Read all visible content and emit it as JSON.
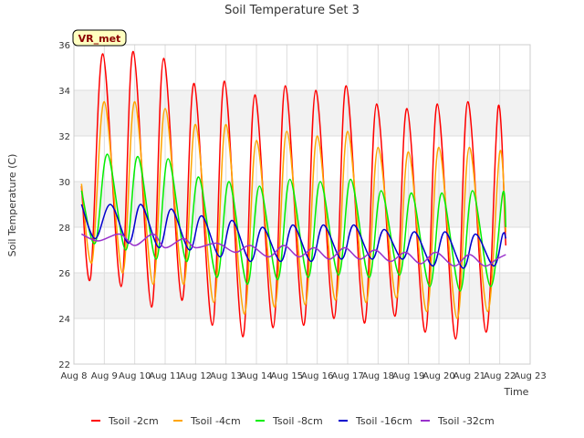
{
  "chart_data": {
    "type": "line",
    "title": "Soil Temperature Set 3",
    "xlabel": "Time",
    "ylabel": "Soil Temperature (C)",
    "ylim": [
      22,
      36
    ],
    "yticks": [
      22,
      24,
      26,
      28,
      30,
      32,
      34,
      36
    ],
    "xlim": [
      8,
      23
    ],
    "xticks": [
      {
        "v": 8,
        "label": "Aug 8"
      },
      {
        "v": 9,
        "label": "Aug 9"
      },
      {
        "v": 10,
        "label": "Aug 10"
      },
      {
        "v": 11,
        "label": "Aug 11"
      },
      {
        "v": 12,
        "label": "Aug 12"
      },
      {
        "v": 13,
        "label": "Aug 13"
      },
      {
        "v": 14,
        "label": "Aug 14"
      },
      {
        "v": 15,
        "label": "Aug 15"
      },
      {
        "v": 16,
        "label": "Aug 16"
      },
      {
        "v": 17,
        "label": "Aug 17"
      },
      {
        "v": 18,
        "label": "Aug 18"
      },
      {
        "v": 19,
        "label": "Aug 19"
      },
      {
        "v": 20,
        "label": "Aug 20"
      },
      {
        "v": 21,
        "label": "Aug 21"
      },
      {
        "v": 22,
        "label": "Aug 22"
      },
      {
        "v": 23,
        "label": "Aug 23"
      }
    ],
    "grid": true,
    "legend": "bottom",
    "annotation": "VR_met",
    "series": [
      {
        "name": "Tsoil -2cm",
        "color": "#ff0000",
        "x": [
          8.25,
          8.55,
          8.95,
          9.55,
          9.95,
          10.55,
          10.95,
          11.55,
          11.95,
          12.55,
          12.95,
          13.55,
          13.95,
          14.55,
          14.95,
          15.55,
          15.95,
          16.55,
          16.95,
          17.55,
          17.95,
          18.55,
          18.95,
          19.55,
          19.95,
          20.55,
          20.95,
          21.55,
          21.95,
          22.2
        ],
        "y": [
          29.8,
          25.8,
          35.6,
          25.4,
          35.7,
          24.5,
          35.4,
          24.8,
          34.3,
          23.7,
          34.4,
          23.2,
          33.8,
          23.6,
          34.2,
          23.7,
          34.0,
          24.0,
          34.2,
          23.8,
          33.4,
          24.1,
          33.2,
          23.4,
          33.4,
          23.1,
          33.5,
          23.4,
          33.3,
          27.2
        ]
      },
      {
        "name": "Tsoil -4cm",
        "color": "#ffa500",
        "x": [
          8.25,
          8.6,
          9.0,
          9.6,
          10.0,
          10.6,
          11.0,
          11.6,
          12.0,
          12.6,
          13.0,
          13.6,
          14.0,
          14.6,
          15.0,
          15.6,
          16.0,
          16.6,
          17.0,
          17.6,
          18.0,
          18.6,
          19.0,
          19.6,
          20.0,
          20.6,
          21.0,
          21.6,
          22.0,
          22.2
        ],
        "y": [
          29.9,
          26.5,
          33.5,
          26.0,
          33.5,
          25.5,
          33.2,
          25.5,
          32.5,
          24.7,
          32.5,
          24.2,
          31.8,
          24.5,
          32.2,
          24.6,
          32.0,
          24.8,
          32.2,
          24.7,
          31.5,
          24.9,
          31.3,
          24.3,
          31.5,
          24.0,
          31.5,
          24.3,
          31.3,
          27.8
        ]
      },
      {
        "name": "Tsoil -8cm",
        "color": "#00ee00",
        "x": [
          8.25,
          8.7,
          9.1,
          9.7,
          10.1,
          10.7,
          11.1,
          11.7,
          12.1,
          12.7,
          13.1,
          13.7,
          14.1,
          14.7,
          15.1,
          15.7,
          16.1,
          16.7,
          17.1,
          17.7,
          18.1,
          18.7,
          19.1,
          19.7,
          20.1,
          20.7,
          21.1,
          21.7,
          22.1,
          22.2
        ],
        "y": [
          29.6,
          27.3,
          31.2,
          27.0,
          31.1,
          26.6,
          31.0,
          26.5,
          30.2,
          25.8,
          30.0,
          25.5,
          29.8,
          25.7,
          30.1,
          25.8,
          30.0,
          25.9,
          30.1,
          25.8,
          29.6,
          25.9,
          29.5,
          25.4,
          29.5,
          25.2,
          29.6,
          25.4,
          29.5,
          28.0
        ]
      },
      {
        "name": "Tsoil -16cm",
        "color": "#0000cd",
        "x": [
          8.25,
          8.7,
          9.2,
          9.8,
          10.2,
          10.8,
          11.2,
          11.8,
          12.2,
          12.8,
          13.2,
          13.8,
          14.2,
          14.8,
          15.2,
          15.8,
          16.2,
          16.8,
          17.2,
          17.8,
          18.2,
          18.8,
          19.2,
          19.8,
          20.2,
          20.8,
          21.2,
          21.8,
          22.1,
          22.2
        ],
        "y": [
          29.0,
          27.5,
          29.0,
          27.3,
          29.0,
          27.1,
          28.8,
          27.0,
          28.5,
          26.7,
          28.3,
          26.5,
          28.0,
          26.5,
          28.1,
          26.5,
          28.1,
          26.6,
          28.1,
          26.6,
          27.9,
          26.6,
          27.8,
          26.3,
          27.8,
          26.2,
          27.7,
          26.3,
          27.7,
          27.5
        ]
      },
      {
        "name": "Tsoil -32cm",
        "color": "#9932cc",
        "x": [
          8.25,
          8.8,
          9.5,
          10.0,
          10.6,
          11.0,
          11.6,
          12.0,
          12.7,
          13.3,
          13.8,
          14.4,
          14.9,
          15.4,
          15.9,
          16.4,
          16.9,
          17.4,
          17.9,
          18.4,
          18.9,
          19.4,
          19.9,
          20.5,
          21.0,
          21.5,
          21.9,
          22.2
        ],
        "y": [
          27.7,
          27.4,
          27.7,
          27.2,
          27.7,
          27.1,
          27.5,
          27.1,
          27.3,
          26.9,
          27.2,
          26.7,
          27.2,
          26.7,
          27.1,
          26.6,
          27.1,
          26.6,
          27.0,
          26.5,
          26.9,
          26.4,
          26.9,
          26.3,
          26.8,
          26.3,
          26.6,
          26.8
        ]
      }
    ]
  }
}
